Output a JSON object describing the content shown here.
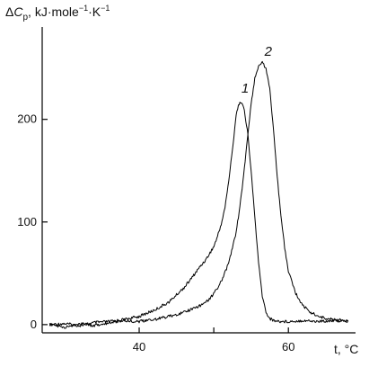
{
  "chart_data": {
    "type": "line",
    "title": "",
    "ylabel": {
      "delta": "Δ",
      "symbol": "C",
      "subscript": "p",
      "unit_prefix": ", kJ·mole",
      "exp1": "−1",
      "unit_mid": "·K",
      "exp2": "−1"
    },
    "xlabel": "t, °C",
    "xlim": [
      27,
      69
    ],
    "ylim": [
      -8,
      290
    ],
    "xticks": [
      40,
      50,
      60
    ],
    "xtick_labels": [
      "40",
      "",
      "60"
    ],
    "yticks": [
      0,
      100,
      200
    ],
    "ytick_labels": [
      "0",
      "100",
      "200"
    ],
    "grid": false,
    "legend": "none",
    "colors": {
      "line": "#000000",
      "axis": "#000000"
    },
    "series": [
      {
        "name": "1",
        "label_at": [
          54.2,
          226
        ],
        "x": [
          28,
          30,
          32,
          34,
          36,
          38,
          40,
          42,
          44,
          45,
          46,
          47,
          48,
          49,
          50,
          50.5,
          51,
          51.5,
          52,
          52.5,
          53,
          53.5,
          54,
          54.5,
          55,
          55.5,
          56,
          56.5,
          57,
          57.5,
          58,
          59,
          60,
          62,
          64,
          66,
          68
        ],
        "y": [
          0,
          1,
          -1,
          2,
          3,
          5,
          8,
          14,
          22,
          29,
          36,
          45,
          55,
          64,
          76,
          86,
          98,
          114,
          140,
          170,
          205,
          218,
          212,
          190,
          150,
          105,
          60,
          28,
          12,
          6,
          4,
          3,
          3,
          4,
          3,
          4,
          3
        ]
      },
      {
        "name": "2",
        "label_at": [
          57.3,
          262
        ],
        "x": [
          28,
          30,
          32,
          34,
          36,
          38,
          40,
          42,
          44,
          46,
          48,
          49,
          50,
          51,
          52,
          53,
          53.5,
          54,
          54.5,
          55,
          55.5,
          56,
          56.5,
          57,
          57.5,
          58,
          58.5,
          59,
          59.5,
          60,
          61,
          62,
          63,
          64,
          65,
          66,
          68
        ],
        "y": [
          0,
          -3,
          1,
          -1,
          2,
          4,
          3,
          5,
          8,
          12,
          18,
          22,
          30,
          42,
          60,
          90,
          115,
          145,
          180,
          215,
          240,
          252,
          255,
          250,
          230,
          190,
          145,
          105,
          75,
          52,
          30,
          18,
          12,
          8,
          6,
          5,
          4
        ]
      }
    ]
  }
}
